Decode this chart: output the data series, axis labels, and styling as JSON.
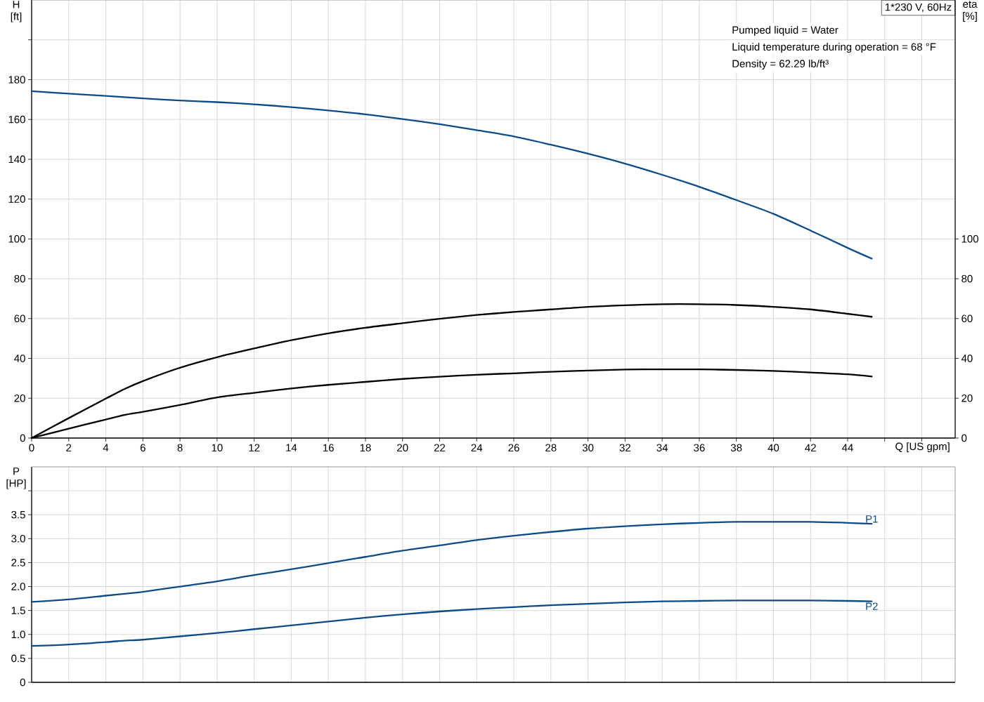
{
  "chart_data": [
    {
      "type": "line",
      "title": "1*230 V, 60Hz",
      "xlabel": "Q [US gpm]",
      "ylabel": "H [ft]",
      "y2label": "eta [%]",
      "annotations": [
        "Pumped liquid = Water",
        "Liquid temperature during operation = 68 °F",
        "Density = 62.29 lb/ft³"
      ],
      "x": [
        0,
        2,
        4,
        5,
        6,
        8,
        10,
        12,
        14,
        16,
        18,
        20,
        22,
        24,
        26,
        28,
        30,
        32,
        34,
        36,
        38,
        40,
        42,
        44,
        45.3
      ],
      "series": [
        {
          "color": "#0d4b87",
          "values": [
            174.2,
            173.0,
            171.8,
            171.2,
            170.6,
            169.5,
            168.7,
            167.6,
            166.2,
            164.5,
            162.6,
            160.2,
            157.6,
            154.6,
            151.5,
            147.3,
            142.8,
            137.8,
            132.2,
            126.2,
            119.5,
            112.6,
            104.2,
            95.5,
            90.1
          ]
        },
        {
          "color": "#000000",
          "axis": "y2",
          "values": [
            0,
            10.0,
            19.8,
            24.6,
            28.6,
            35.3,
            40.6,
            45.0,
            49.1,
            52.6,
            55.4,
            57.7,
            59.9,
            61.8,
            63.3,
            64.6,
            65.9,
            66.7,
            67.2,
            67.2,
            66.8,
            65.9,
            64.6,
            62.4,
            60.9
          ]
        },
        {
          "color": "#000000",
          "axis": "y2",
          "values": [
            0,
            4.7,
            9.3,
            11.6,
            13.2,
            16.6,
            20.4,
            22.7,
            24.9,
            26.7,
            28.2,
            29.7,
            30.8,
            31.8,
            32.5,
            33.3,
            33.9,
            34.4,
            34.5,
            34.5,
            34.2,
            33.7,
            32.9,
            32.0,
            30.9
          ]
        }
      ],
      "xlim": [
        0,
        49.8
      ],
      "xticks": [
        0,
        2,
        4,
        6,
        8,
        10,
        12,
        14,
        16,
        18,
        20,
        22,
        24,
        26,
        28,
        30,
        32,
        34,
        36,
        38,
        40,
        42,
        44,
        {
          "value": 46,
          "label": null
        },
        {
          "value": 48,
          "label": null
        }
      ],
      "ylim": [
        0,
        220
      ],
      "yticks": [
        0,
        20,
        40,
        60,
        80,
        100,
        120,
        140,
        160,
        180,
        {
          "value": 200,
          "label": null
        }
      ],
      "y2lim": [
        0,
        220
      ],
      "y2ticks": [
        0,
        20,
        40,
        60,
        80,
        100
      ],
      "grid": true
    },
    {
      "type": "line",
      "ylabel": "P [HP]",
      "x": [
        0,
        2,
        4,
        5,
        6,
        8,
        10,
        12,
        14,
        16,
        18,
        20,
        22,
        24,
        26,
        28,
        30,
        32,
        34,
        36,
        38,
        40,
        42,
        44,
        45.3
      ],
      "series": [
        {
          "name": "P1",
          "color": "#0d4b87",
          "values": [
            1.68,
            1.73,
            1.81,
            1.85,
            1.89,
            2.0,
            2.11,
            2.24,
            2.36,
            2.49,
            2.62,
            2.75,
            2.86,
            2.97,
            3.06,
            3.14,
            3.21,
            3.26,
            3.3,
            3.33,
            3.35,
            3.35,
            3.35,
            3.33,
            3.31
          ]
        },
        {
          "name": "P2",
          "color": "#0d4b87",
          "values": [
            0.76,
            0.79,
            0.84,
            0.87,
            0.89,
            0.96,
            1.03,
            1.11,
            1.19,
            1.27,
            1.35,
            1.42,
            1.48,
            1.53,
            1.57,
            1.61,
            1.64,
            1.67,
            1.69,
            1.7,
            1.71,
            1.71,
            1.71,
            1.7,
            1.69
          ]
        }
      ],
      "xlim": [
        0,
        49.8
      ],
      "xticks": [
        0,
        2,
        4,
        6,
        8,
        10,
        12,
        14,
        16,
        18,
        20,
        22,
        24,
        26,
        28,
        30,
        32,
        34,
        36,
        38,
        40,
        42,
        44,
        46,
        48
      ],
      "ylim": [
        0,
        4.5
      ],
      "yticks": [
        0,
        0.5,
        {
          "value": 1,
          "label": "1.0"
        },
        1.5,
        {
          "value": 2,
          "label": "2.0"
        },
        2.5,
        {
          "value": 3,
          "label": "3.0"
        },
        3.5,
        {
          "value": 4,
          "label": null
        }
      ],
      "grid": true,
      "tick_labels": "y"
    }
  ]
}
